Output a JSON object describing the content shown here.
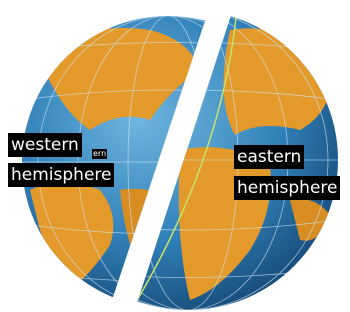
{
  "labels": [
    {
      "lines": [
        "western",
        "hemisphere"
      ],
      "note": "ern"
    },
    {
      "lines": [
        "eastern",
        "hemisphere"
      ]
    }
  ]
}
